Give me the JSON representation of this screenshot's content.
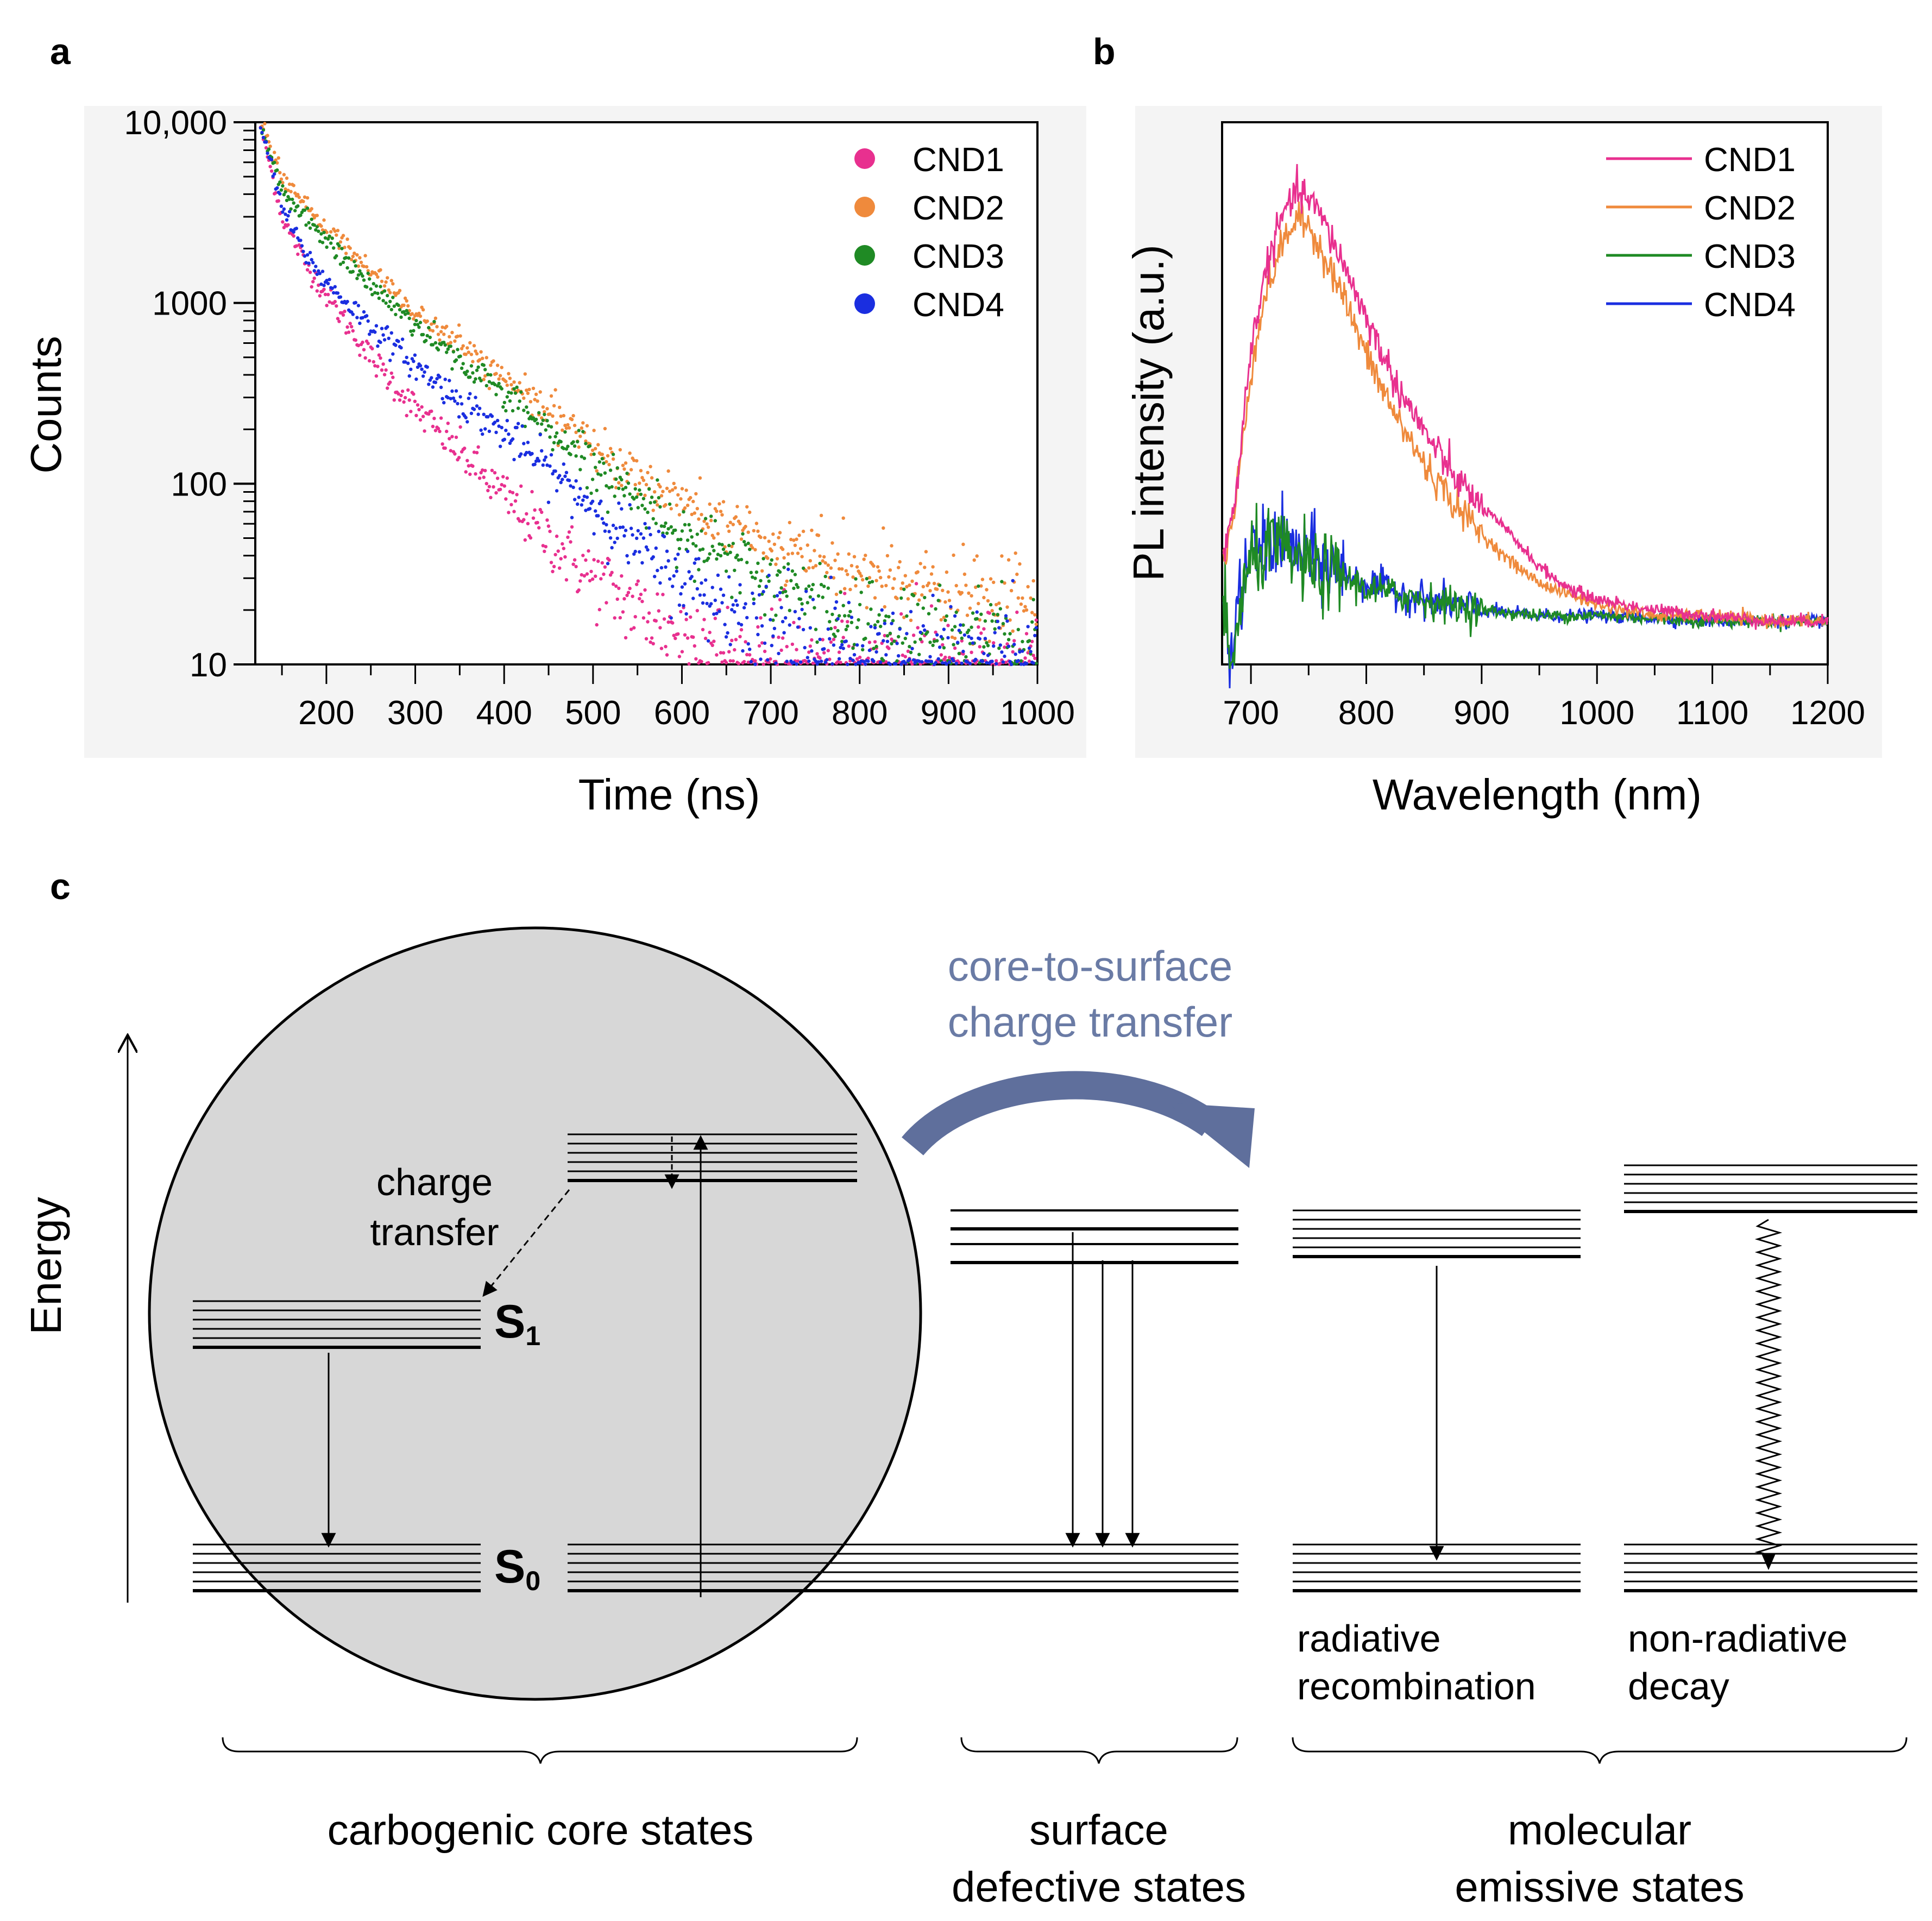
{
  "panels": {
    "a": "a",
    "b": "b",
    "c": "c"
  },
  "colors": {
    "CND1": "#e8308f",
    "CND2": "#ef8a3c",
    "CND3": "#1f8a24",
    "CND4": "#1a2ee0",
    "charge_transfer_arrow": "#5f6f9c",
    "core_fill": "#d7d7d7"
  },
  "chart_data": [
    {
      "panel": "a",
      "type": "scatter",
      "title": "",
      "xlabel": "Time (ns)",
      "ylabel": "Counts",
      "xlim": [
        120,
        1000
      ],
      "ylim": [
        10,
        10000
      ],
      "yscale": "log",
      "xticks": [
        200,
        300,
        400,
        500,
        600,
        700,
        800,
        900,
        1000
      ],
      "xtick_labels": [
        "200",
        "300",
        "400",
        "500",
        "600",
        "700",
        "800",
        "900",
        "1000"
      ],
      "yticks": [
        10,
        100,
        1000,
        10000
      ],
      "ytick_labels": [
        "10",
        "100",
        "1000",
        "10,000"
      ],
      "legend_position": "top-right",
      "series": [
        {
          "name": "CND1",
          "x": [
            125,
            150,
            175,
            200,
            250,
            300,
            350,
            400,
            450,
            500,
            550,
            600,
            650,
            700,
            800,
            900,
            1000
          ],
          "y": [
            10000,
            3000,
            1700,
            1100,
            500,
            260,
            150,
            85,
            50,
            30,
            20,
            15,
            12,
            11,
            10,
            10,
            10
          ]
        },
        {
          "name": "CND2",
          "x": [
            125,
            150,
            175,
            200,
            250,
            300,
            350,
            400,
            450,
            500,
            550,
            600,
            650,
            700,
            800,
            900,
            1000
          ],
          "y": [
            10000,
            5000,
            3500,
            2600,
            1500,
            900,
            580,
            380,
            250,
            165,
            110,
            80,
            58,
            45,
            32,
            24,
            20
          ]
        },
        {
          "name": "CND3",
          "x": [
            125,
            150,
            175,
            200,
            250,
            300,
            350,
            400,
            450,
            500,
            550,
            600,
            650,
            700,
            800,
            900,
            1000
          ],
          "y": [
            10000,
            4300,
            3000,
            2200,
            1250,
            760,
            480,
            310,
            200,
            130,
            85,
            55,
            38,
            28,
            18,
            14,
            13
          ]
        },
        {
          "name": "CND4",
          "x": [
            125,
            150,
            175,
            200,
            250,
            300,
            350,
            400,
            450,
            500,
            550,
            600,
            650,
            700,
            800,
            900,
            1000
          ],
          "y": [
            10000,
            3400,
            1900,
            1300,
            750,
            450,
            290,
            190,
            120,
            75,
            45,
            30,
            21,
            16,
            12,
            11,
            10
          ]
        }
      ]
    },
    {
      "panel": "b",
      "type": "line",
      "title": "",
      "xlabel": "Wavelength (nm)",
      "ylabel": "PL intensity (a.u.)",
      "xlim": [
        675,
        1200
      ],
      "ylim": [
        0,
        1
      ],
      "xticks": [
        700,
        800,
        900,
        1000,
        1100,
        1200
      ],
      "xtick_labels": [
        "700",
        "800",
        "900",
        "1000",
        "1100",
        "1200"
      ],
      "legend_position": "top-right",
      "series": [
        {
          "name": "CND1",
          "x": [
            675,
            685,
            700,
            710,
            720,
            730,
            740,
            750,
            760,
            780,
            800,
            825,
            850,
            875,
            900,
            925,
            950,
            975,
            1000,
            1050,
            1100,
            1150,
            1200
          ],
          "y": [
            0.19,
            0.28,
            0.58,
            0.7,
            0.78,
            0.84,
            0.87,
            0.86,
            0.83,
            0.74,
            0.64,
            0.52,
            0.43,
            0.35,
            0.29,
            0.24,
            0.18,
            0.14,
            0.12,
            0.1,
            0.09,
            0.08,
            0.08
          ]
        },
        {
          "name": "CND2",
          "x": [
            675,
            685,
            700,
            710,
            720,
            730,
            740,
            750,
            760,
            780,
            800,
            825,
            850,
            875,
            900,
            925,
            950,
            975,
            1000,
            1050,
            1100,
            1150,
            1200
          ],
          "y": [
            0.18,
            0.27,
            0.54,
            0.66,
            0.73,
            0.79,
            0.82,
            0.81,
            0.77,
            0.68,
            0.57,
            0.46,
            0.37,
            0.3,
            0.24,
            0.19,
            0.15,
            0.13,
            0.11,
            0.09,
            0.09,
            0.08,
            0.08
          ]
        },
        {
          "name": "CND3",
          "x": [
            675,
            682,
            690,
            700,
            720,
            740,
            760,
            780,
            800,
            850,
            900,
            950,
            1000,
            1100,
            1200
          ],
          "y": [
            0.15,
            -0.02,
            0.1,
            0.19,
            0.22,
            0.19,
            0.17,
            0.16,
            0.14,
            0.12,
            0.1,
            0.09,
            0.09,
            0.08,
            0.08
          ]
        },
        {
          "name": "CND4",
          "x": [
            675,
            682,
            690,
            700,
            720,
            740,
            760,
            780,
            800,
            850,
            900,
            950,
            1000,
            1100,
            1200
          ],
          "y": [
            0.14,
            0.0,
            0.12,
            0.2,
            0.23,
            0.21,
            0.19,
            0.17,
            0.15,
            0.12,
            0.1,
            0.09,
            0.09,
            0.08,
            0.08
          ]
        }
      ]
    }
  ],
  "diagram": {
    "energy_label": "Energy",
    "core_to_surface_line1": "core-to-surface",
    "core_to_surface_line2": "charge transfer",
    "charge_transfer_line1": "charge",
    "charge_transfer_line2": "transfer",
    "s1_main": "S",
    "s1_sub": "1",
    "s0_main": "S",
    "s0_sub": "0",
    "radiative_line1": "radiative",
    "radiative_line2": "recombination",
    "nonradiative_line1": "non-radiative",
    "nonradiative_line2": "decay",
    "group_core": "carbogenic core states",
    "group_surface_line1": "surface",
    "group_surface_line2": "defective states",
    "group_molecular_line1": "molecular",
    "group_molecular_line2": "emissive states"
  }
}
